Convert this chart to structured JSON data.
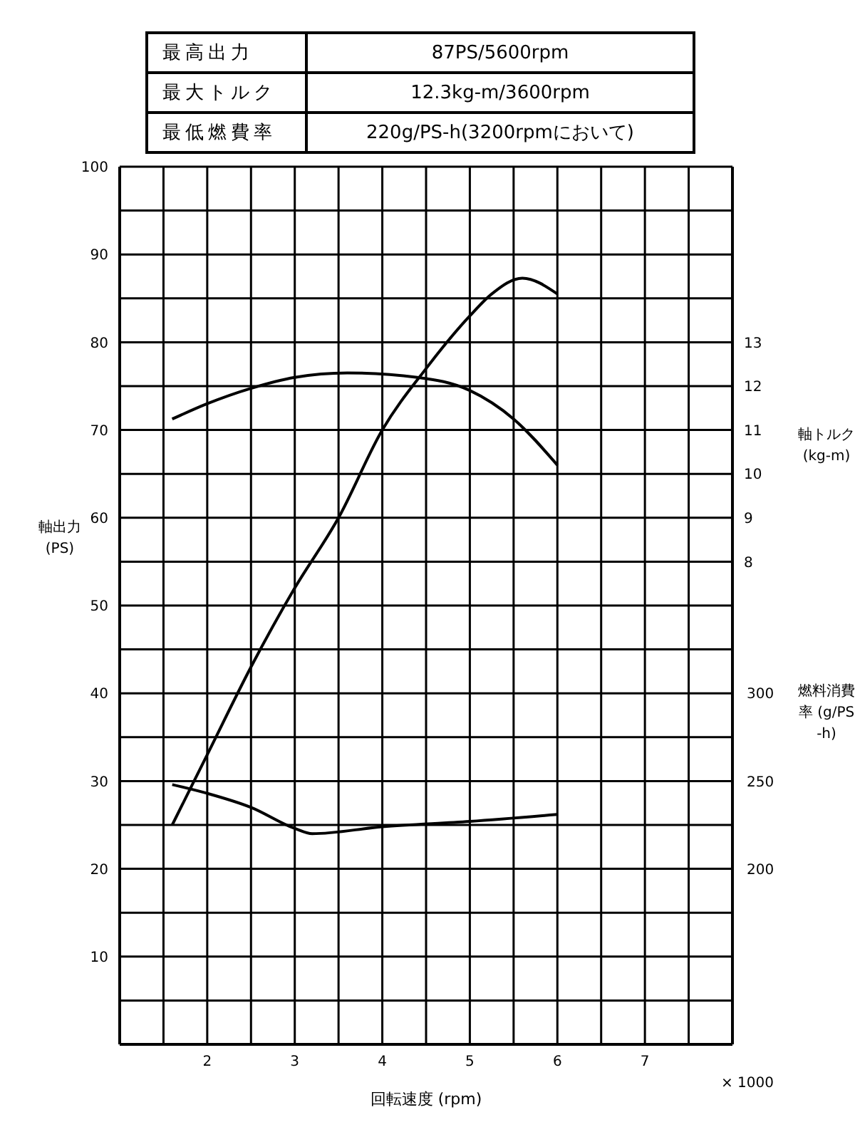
{
  "chart_data": {
    "type": "line",
    "xlabel": "回転速度 (rpm)",
    "ylabel": "軸出力 (PS)",
    "y2label": "軸トルク (kg-m)",
    "y3label": "燃料消費率 (g/PS-h)",
    "annotations": [
      "最高出力",
      "87PS/5600rpm",
      "最大トルク",
      "12.3kg-m/3600rpm",
      "最低燃費率",
      "220g/PS-h(3200rpmにおいて)",
      "× 1000"
    ],
    "xlim": [
      1,
      8
    ],
    "xticks": [
      {
        "value": 1.5,
        "label": null
      },
      2,
      {
        "value": 2.5,
        "label": null
      },
      3,
      {
        "value": 3.5,
        "label": null
      },
      4,
      {
        "value": 4.5,
        "label": null
      },
      5,
      {
        "value": 5.5,
        "label": null
      },
      6,
      {
        "value": 6.5,
        "label": null
      },
      7,
      {
        "value": 7.5,
        "label": null
      }
    ],
    "ylim": [
      0,
      100
    ],
    "yticks": [
      {
        "value": 5,
        "label": null
      },
      10,
      {
        "value": 15,
        "label": null
      },
      20,
      {
        "value": 25,
        "label": null
      },
      30,
      {
        "value": 35,
        "label": null
      },
      40,
      {
        "value": 45,
        "label": null
      },
      50,
      {
        "value": 55,
        "label": null
      },
      60,
      {
        "value": 65,
        "label": null
      },
      70,
      {
        "value": 75,
        "label": null
      },
      80,
      {
        "value": 85,
        "label": null
      },
      90,
      {
        "value": 95,
        "label": null
      },
      100
    ],
    "y2lim": [
      -3,
      17
    ],
    "y2ticks": [
      8,
      9,
      10,
      11,
      12,
      13
    ],
    "y3lim": [
      100,
      600
    ],
    "y3ticks": [
      200,
      250,
      300
    ],
    "grid": true,
    "legend": false,
    "marker": "none",
    "line_style": "solid",
    "series": [
      {
        "color": "#000000",
        "x": [
          1.6,
          2,
          2.5,
          3,
          3.5,
          4,
          4.5,
          5,
          5.25,
          5.6,
          6
        ],
        "values": [
          25,
          33,
          43,
          52,
          60,
          70,
          77,
          83,
          85.5,
          87.3,
          85.5
        ]
      },
      {
        "color": "#000000",
        "axis": "y2",
        "x": [
          1.6,
          2,
          2.5,
          3,
          3.6,
          4.4,
          5,
          5.5,
          6
        ],
        "values": [
          11.25,
          11.6,
          11.95,
          12.2,
          12.3,
          12.2,
          11.9,
          11.25,
          10.2
        ]
      },
      {
        "color": "#000000",
        "axis": "y3",
        "x": [
          1.6,
          2,
          2.5,
          3,
          3.2,
          4,
          5,
          6
        ],
        "values": [
          248,
          243,
          235,
          223,
          220,
          224,
          227,
          231
        ]
      }
    ]
  }
}
